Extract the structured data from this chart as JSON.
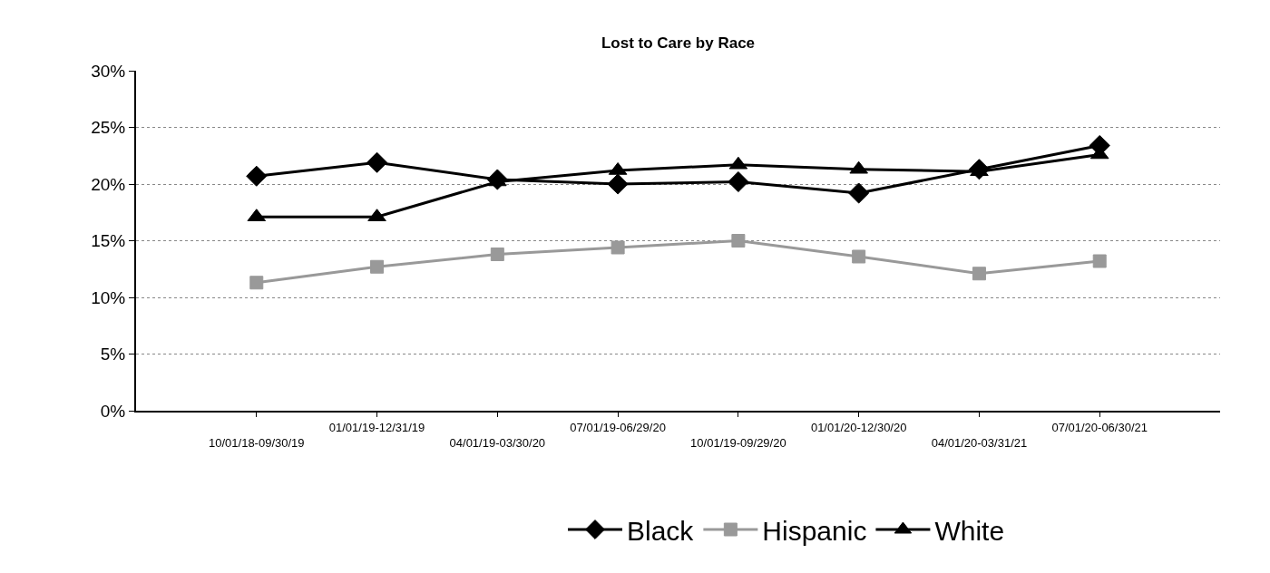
{
  "chart_data": {
    "type": "line",
    "title": "Lost to Care by Race",
    "categories": [
      null,
      "10/01/18-09/30/19",
      "01/01/19-12/31/19",
      "04/01/19-03/30/20",
      "07/01/19-06/29/20",
      "10/01/19-09/29/20",
      "01/01/20-12/30/20",
      "04/01/20-03/31/21",
      "07/01/20-06/30/21",
      null
    ],
    "series": [
      {
        "name": "Black",
        "color": "#000000",
        "marker": "diamond",
        "values": [
          null,
          20.7,
          21.9,
          20.4,
          20.0,
          20.2,
          19.2,
          21.3,
          23.4,
          null
        ]
      },
      {
        "name": "Hispanic",
        "color": "#999999",
        "marker": "square",
        "values": [
          null,
          11.3,
          12.7,
          13.8,
          14.4,
          15.0,
          13.6,
          12.1,
          13.2,
          null
        ]
      },
      {
        "name": "White",
        "color": "#000000",
        "marker": "triangle",
        "values": [
          null,
          17.1,
          17.1,
          20.2,
          21.2,
          21.7,
          21.3,
          21.1,
          22.6,
          null
        ]
      }
    ],
    "ylim": [
      0,
      30
    ],
    "yticks": [
      {
        "value": 0,
        "label": "0%"
      },
      {
        "value": 5,
        "label": "5%"
      },
      {
        "value": 10,
        "label": "10%"
      },
      {
        "value": 15,
        "label": "15%"
      },
      {
        "value": 20,
        "label": "20%"
      },
      {
        "value": 25,
        "label": "25%"
      },
      {
        "value": 30,
        "label": "30%"
      }
    ],
    "grid": "y",
    "legend": "bottom",
    "line_style": "solid"
  }
}
